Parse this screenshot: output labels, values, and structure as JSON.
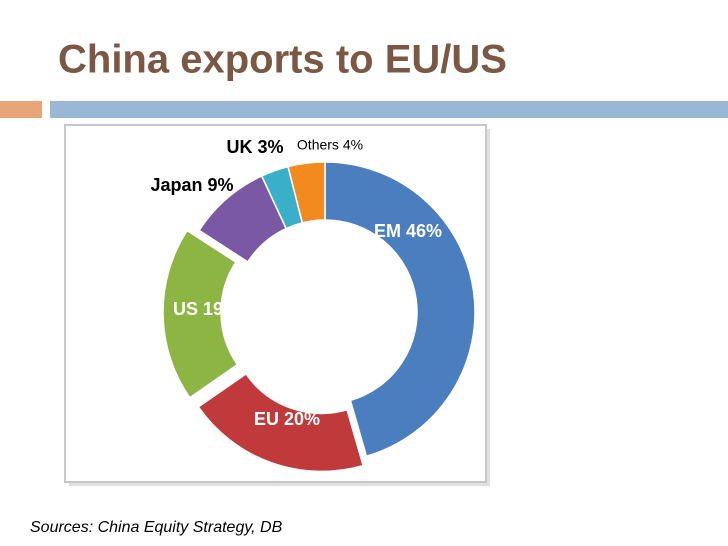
{
  "header": {
    "title": "China exports to EU/US"
  },
  "chart_data": {
    "type": "pie",
    "donut": true,
    "values": [
      46,
      20,
      19,
      9,
      3,
      4
    ],
    "value_labels": [
      "EM 46%",
      "EU 20%",
      "US 19%",
      "Japan 9%",
      "UK 3%",
      "Others  4%"
    ],
    "colors": [
      "#4a7ebf",
      "#c0393b",
      "#8db543",
      "#7a58a3",
      "#3ab0c8",
      "#f38a20"
    ]
  },
  "footer": {
    "source": "Sources: China Equity Strategy, DB"
  }
}
